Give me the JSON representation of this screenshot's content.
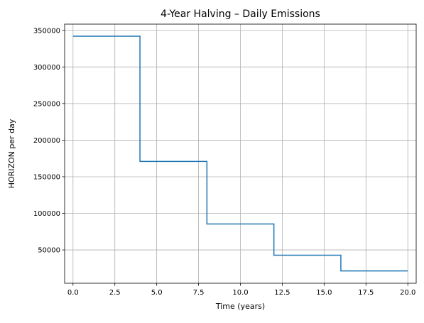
{
  "chart_data": {
    "type": "line",
    "step": "post",
    "title": "4-Year Halving – Daily Emissions",
    "xlabel": "Time (years)",
    "ylabel": "HORIZON per day",
    "xlim": [
      -0.5,
      20.5
    ],
    "ylim": [
      4500,
      358500
    ],
    "xticks": [
      0,
      2.5,
      5,
      7.5,
      10,
      12.5,
      15,
      17.5,
      20
    ],
    "xtick_labels": [
      "0.0",
      "2.5",
      "5.0",
      "7.5",
      "10.0",
      "12.5",
      "15.0",
      "17.5",
      "20.0"
    ],
    "yticks": [
      50000,
      100000,
      150000,
      200000,
      250000,
      300000,
      350000
    ],
    "ytick_labels": [
      "50000",
      "100000",
      "150000",
      "200000",
      "250000",
      "300000",
      "350000"
    ],
    "grid": true,
    "series": [
      {
        "color": "#1f77b4",
        "x": [
          0,
          4,
          8,
          12,
          16,
          20
        ],
        "y": [
          342000,
          171000,
          85500,
          42750,
          21375,
          21375
        ]
      }
    ]
  }
}
